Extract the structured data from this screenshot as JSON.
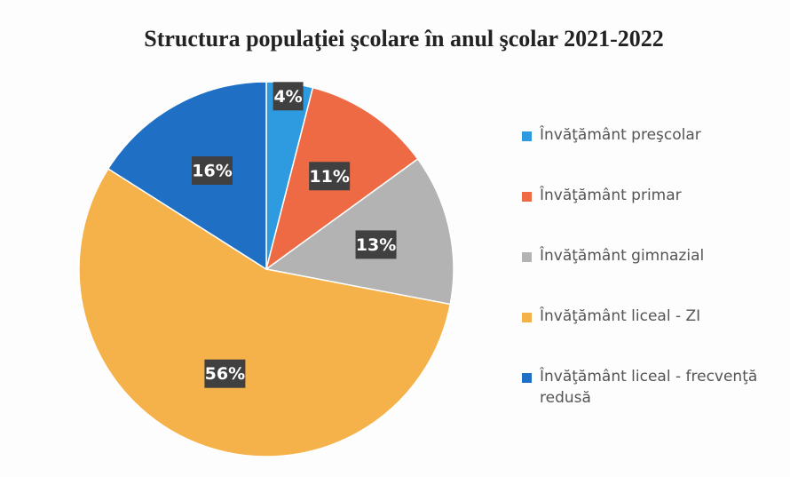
{
  "chart_data": {
    "type": "pie",
    "title": "Structura populaţiei şcolare în anul şcolar 2021-2022",
    "categories": [
      "Învăţământ preşcolar",
      "Învăţământ primar",
      "Învăţământ gimnazial",
      "Învăţământ liceal - ZI",
      "Învăţământ liceal - frecvenţă redusă"
    ],
    "values": [
      4,
      11,
      13,
      56,
      16
    ],
    "value_labels": [
      "4%",
      "11%",
      "13%",
      "56%",
      "16%"
    ],
    "colors": [
      "#2e9be0",
      "#ee6a45",
      "#b3b3b3",
      "#f6b24a",
      "#1f6fc5"
    ],
    "legend": "right"
  }
}
